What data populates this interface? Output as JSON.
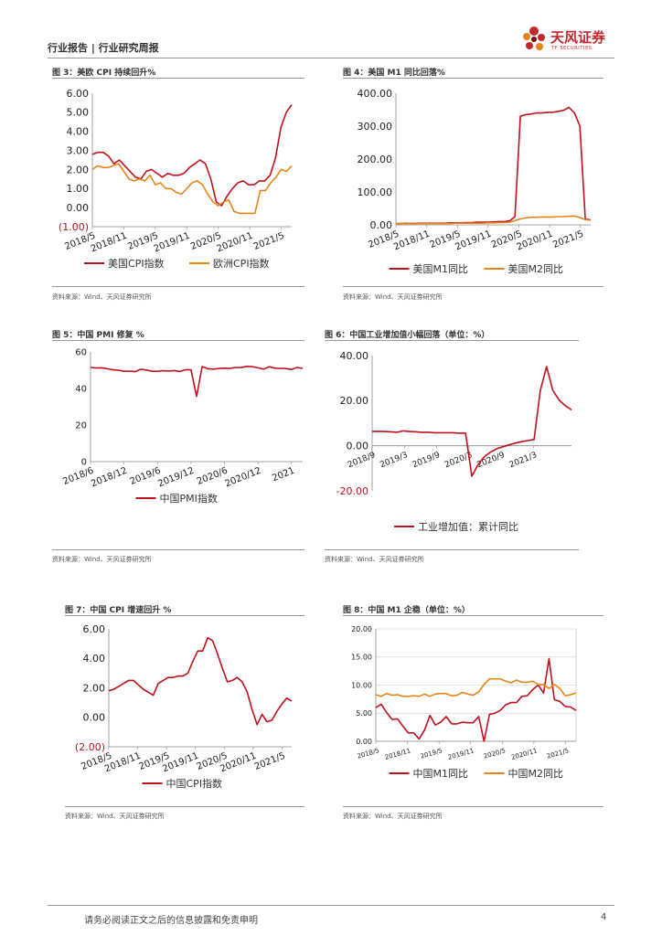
{
  "header": {
    "breadcrumb": "行业报告 | 行业研究周报",
    "logo_cn": "天风证券",
    "logo_en": "TF SECURITIES"
  },
  "colors": {
    "red": "#c0101d",
    "orange": "#e8841a",
    "rule": "#9a9a9a"
  },
  "figures": [
    {
      "title": "图 3：美欧 CPI 持续回升%",
      "source": "资料来源：Wind、天风证券研究所"
    },
    {
      "title": "图 4：美国 M1 同比回落%",
      "source": "资料来源：Wind、天风证券研究所"
    },
    {
      "title": "图 5：中国 PMI 修复 %",
      "source": "资料来源：Wind、天风证券研究所"
    },
    {
      "title": "图 6：中国工业增加值小幅回落（单位：%）",
      "source": "资料来源：Wind、天风证券研究所"
    },
    {
      "title": "图 7：中国 CPI 增速回升 %",
      "source": "资料来源：Wind、天风证券研究所"
    },
    {
      "title": "图 8：中国 M1 企稳（单位：%）",
      "source": "资料来源：Wind、天风证券研究所"
    }
  ],
  "footer": {
    "disclaimer": "请务必阅读正文之后的信息披露和免责申明",
    "page": "4"
  },
  "chart_data": [
    {
      "id": "fig3",
      "type": "line",
      "ylim": [
        -1,
        6
      ],
      "yticks": [
        -1,
        0,
        1,
        2,
        3,
        4,
        5,
        6
      ],
      "ytick_labels": [
        "(1.00)",
        "0.00",
        "1.00",
        "2.00",
        "3.00",
        "4.00",
        "5.00",
        "6.00"
      ],
      "x_range": [
        0,
        38
      ],
      "xticks": [
        0,
        6,
        12,
        18,
        24,
        30,
        36
      ],
      "xtick_labels": [
        "2018/5",
        "2018/11",
        "2019/5",
        "2019/11",
        "2020/5",
        "2020/11",
        "2021/5"
      ],
      "series": [
        {
          "name": "美国CPI指数",
          "color": "#c0101d",
          "values": [
            2.8,
            2.9,
            2.9,
            2.7,
            2.3,
            2.5,
            2.2,
            1.9,
            1.6,
            1.5,
            1.9,
            2.0,
            1.8,
            1.6,
            1.8,
            1.7,
            1.7,
            1.8,
            2.1,
            2.3,
            2.5,
            2.3,
            1.5,
            0.3,
            0.1,
            0.6,
            1.0,
            1.3,
            1.4,
            1.2,
            1.2,
            1.4,
            1.4,
            1.7,
            2.6,
            4.2,
            5.0,
            5.4
          ]
        },
        {
          "name": "欧洲CPI指数",
          "color": "#e8841a",
          "values": [
            2.0,
            2.2,
            2.1,
            2.1,
            2.2,
            2.3,
            1.9,
            1.5,
            1.4,
            1.5,
            1.4,
            1.7,
            1.2,
            1.3,
            1.0,
            1.0,
            0.8,
            0.7,
            1.0,
            1.3,
            1.4,
            1.2,
            0.7,
            0.3,
            0.1,
            0.3,
            0.4,
            -0.2,
            -0.3,
            -0.3,
            -0.3,
            -0.3,
            0.9,
            0.9,
            1.3,
            1.6,
            2.0,
            1.9,
            2.2
          ]
        }
      ]
    },
    {
      "id": "fig4",
      "type": "line",
      "ylim": [
        0,
        400
      ],
      "yticks": [
        0,
        100,
        200,
        300,
        400
      ],
      "ytick_labels": [
        "0.00",
        "100.00",
        "200.00",
        "300.00",
        "400.00"
      ],
      "x_range": [
        0,
        38
      ],
      "xticks": [
        0,
        6,
        12,
        18,
        24,
        30,
        36
      ],
      "xtick_labels": [
        "2018/5",
        "2018/11",
        "2019/5",
        "2019/11",
        "2020/5",
        "2020/11",
        "2021/5"
      ],
      "series": [
        {
          "name": "美国M1同比",
          "color": "#c0101d",
          "values": [
            4,
            4,
            5,
            4,
            5,
            5,
            5,
            5,
            5,
            5,
            6,
            6,
            6,
            7,
            7,
            8,
            8,
            8,
            9,
            10,
            10,
            12,
            25,
            330,
            335,
            337,
            340,
            340,
            342,
            342,
            345,
            348,
            357,
            340,
            300,
            18,
            15
          ]
        },
        {
          "name": "美国M2同比",
          "color": "#e8841a",
          "values": [
            4,
            4,
            4,
            4,
            4,
            4,
            4,
            4,
            4,
            4,
            4,
            5,
            5,
            5,
            5,
            5,
            5,
            6,
            6,
            7,
            7,
            8,
            13,
            18,
            21,
            23,
            23,
            24,
            24,
            24,
            25,
            25,
            26,
            27,
            22,
            16,
            14
          ]
        }
      ]
    },
    {
      "id": "fig5",
      "type": "line",
      "ylim": [
        0,
        60
      ],
      "yticks": [
        0,
        20,
        40,
        60
      ],
      "ytick_labels": [
        "0",
        "20",
        "40",
        "60"
      ],
      "x_range": [
        0,
        38
      ],
      "xticks": [
        0,
        6,
        12,
        18,
        24,
        30,
        36
      ],
      "xtick_labels": [
        "2018/6",
        "2018/12",
        "2019/6",
        "2019/12",
        "2020/6",
        "2020/12",
        "2021"
      ],
      "series": [
        {
          "name": "中国PMI指数",
          "color": "#c0101d",
          "values": [
            51.5,
            51.2,
            51.3,
            50.8,
            50.2,
            50.0,
            49.4,
            49.5,
            49.2,
            50.5,
            50.1,
            49.4,
            49.4,
            49.7,
            49.5,
            49.8,
            49.3,
            50.2,
            50.2,
            35.7,
            52.0,
            50.8,
            50.6,
            50.9,
            51.1,
            51.0,
            51.5,
            51.4,
            52.1,
            51.9,
            51.3,
            50.6,
            51.9,
            51.1,
            51.0,
            50.9,
            50.4,
            51.5,
            51.0
          ]
        }
      ]
    },
    {
      "id": "fig6",
      "type": "line",
      "ylim": [
        -20,
        40
      ],
      "yticks": [
        -20,
        0,
        20,
        40
      ],
      "ytick_labels": [
        "-20.00",
        "0.00",
        "20.00",
        "40.00"
      ],
      "x_range": [
        0,
        37
      ],
      "xticks": [
        0,
        6,
        12,
        18,
        24,
        30
      ],
      "xtick_labels": [
        "2018/9",
        "2019/3",
        "2019/9",
        "2020/3",
        "2020/9",
        "2021/3"
      ],
      "series": [
        {
          "name": "工业增加值：累计同比",
          "color": "#c0101d",
          "values": [
            6.4,
            6.4,
            6.3,
            6.2,
            6.0,
            6.6,
            6.3,
            6.2,
            6.0,
            6.0,
            5.8,
            5.8,
            5.8,
            5.8,
            5.6,
            5.6,
            -13.5,
            -8.4,
            -4.9,
            -2.8,
            -1.3,
            -0.4,
            0.4,
            1.2,
            1.8,
            2.3,
            2.8,
            24.5,
            35.1,
            24.6,
            20.3,
            17.8,
            15.9
          ]
        }
      ]
    },
    {
      "id": "fig7",
      "type": "line",
      "ylim": [
        -2,
        6
      ],
      "yticks": [
        -2,
        0,
        2,
        4,
        6
      ],
      "ytick_labels": [
        "(2.00)",
        "0.00",
        "2.00",
        "4.00",
        "6.00"
      ],
      "x_range": [
        0,
        38
      ],
      "xticks": [
        0,
        6,
        12,
        18,
        24,
        30,
        36
      ],
      "xtick_labels": [
        "2018/5",
        "2018/11",
        "2019/5",
        "2019/11",
        "2020/5",
        "2020/11",
        "2021/5"
      ],
      "series": [
        {
          "name": "中国CPI指数",
          "color": "#c0101d",
          "values": [
            1.8,
            1.9,
            2.1,
            2.3,
            2.5,
            2.5,
            2.2,
            1.9,
            1.7,
            1.5,
            2.3,
            2.5,
            2.7,
            2.7,
            2.8,
            2.8,
            3.0,
            3.8,
            4.5,
            4.5,
            5.4,
            5.2,
            4.3,
            3.3,
            2.4,
            2.5,
            2.7,
            2.4,
            1.7,
            0.5,
            -0.5,
            0.2,
            -0.3,
            -0.2,
            0.4,
            0.9,
            1.3,
            1.1
          ]
        }
      ]
    },
    {
      "id": "fig8",
      "type": "line",
      "ylim": [
        0,
        20
      ],
      "yticks": [
        0,
        5,
        10,
        15,
        20
      ],
      "ytick_labels": [
        "0.00",
        "5.00",
        "10.00",
        "15.00",
        "20.00"
      ],
      "x_range": [
        0,
        38
      ],
      "xticks": [
        0,
        6,
        12,
        18,
        24,
        30,
        36
      ],
      "xtick_labels": [
        "2018/5",
        "2018/11",
        "2019/5",
        "2019/11",
        "2020/5",
        "2020/11",
        "2021/5"
      ],
      "series": [
        {
          "name": "中国M1同比",
          "color": "#c0101d",
          "values": [
            6.0,
            6.6,
            5.1,
            3.9,
            4.0,
            2.7,
            1.5,
            1.5,
            0.4,
            2.0,
            4.6,
            2.9,
            3.4,
            4.4,
            3.1,
            3.1,
            3.4,
            3.3,
            3.3,
            4.4,
            0.0,
            4.8,
            5.0,
            5.5,
            6.5,
            6.9,
            6.9,
            8.0,
            8.1,
            9.2,
            10.0,
            8.6,
            14.7,
            7.4,
            7.1,
            6.2,
            6.1,
            5.5
          ]
        },
        {
          "name": "中国M2同比",
          "color": "#e8841a",
          "values": [
            8.3,
            8.0,
            8.5,
            8.2,
            8.3,
            8.0,
            8.0,
            8.1,
            8.0,
            8.4,
            8.0,
            8.4,
            8.5,
            8.5,
            8.1,
            8.2,
            8.7,
            8.4,
            8.2,
            8.8,
            10.1,
            11.1,
            11.1,
            11.1,
            10.7,
            10.4,
            10.9,
            10.5,
            10.5,
            10.7,
            10.1,
            10.1,
            9.4,
            10.1,
            9.4,
            8.1,
            8.3,
            8.6
          ]
        }
      ]
    }
  ]
}
